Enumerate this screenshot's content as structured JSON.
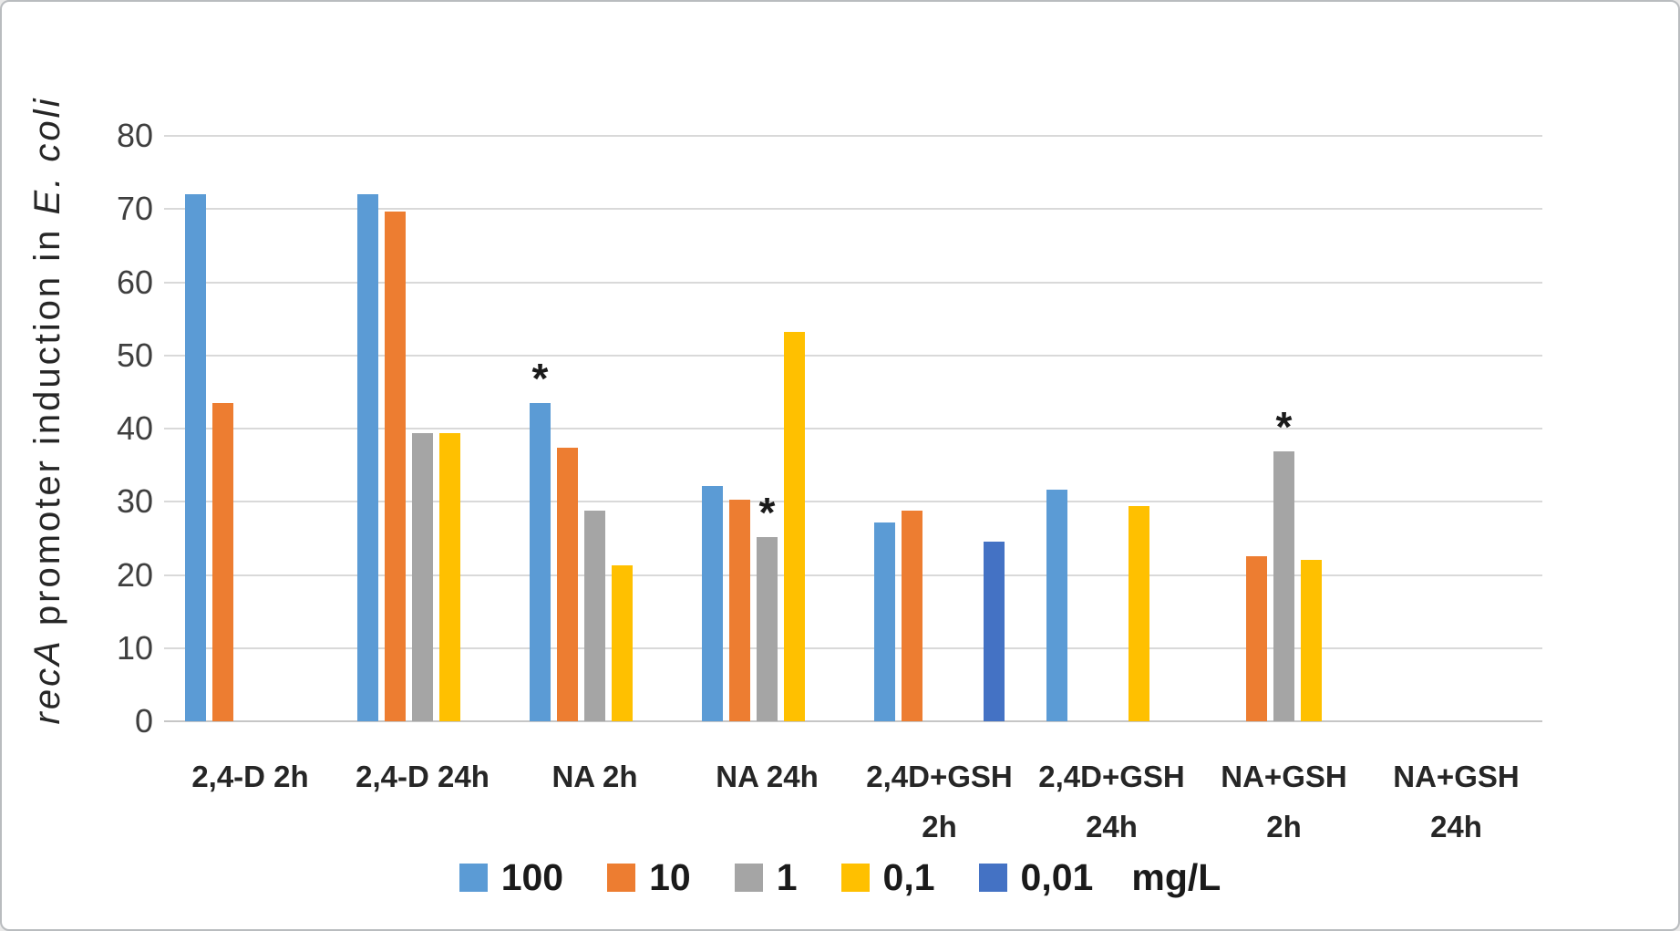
{
  "chart_data": {
    "type": "bar",
    "title": "",
    "ylabel_parts": [
      {
        "text": "recA",
        "italic": true
      },
      {
        "text": " promoter induction in ",
        "italic": false
      },
      {
        "text": "E. coli",
        "italic": true
      }
    ],
    "ylim": [
      0,
      80
    ],
    "yticks": [
      0,
      10,
      20,
      30,
      40,
      50,
      60,
      70,
      80
    ],
    "grid": true,
    "legend_position": "bottom",
    "categories": [
      "2,4-D 2h",
      "2,4-D 24h",
      "NA 2h",
      "NA 24h",
      "2,4D+GSH 2h",
      "2,4D+GSH 24h",
      "NA+GSH 2h",
      "NA+GSH 24h"
    ],
    "category_label_lines": [
      [
        "2,4-D 2h"
      ],
      [
        "2,4-D 24h"
      ],
      [
        "NA 2h"
      ],
      [
        "NA 24h"
      ],
      [
        "2,4D+GSH",
        "2h"
      ],
      [
        "2,4D+GSH",
        "24h"
      ],
      [
        "NA+GSH",
        "2h"
      ],
      [
        "NA+GSH",
        "24h"
      ]
    ],
    "series": [
      {
        "name": "100",
        "color": "#5B9BD5",
        "values": [
          72,
          72,
          43.5,
          32.2,
          27.2,
          31.6,
          null,
          null
        ]
      },
      {
        "name": "10",
        "color": "#ED7D31",
        "values": [
          43.5,
          69.7,
          37.4,
          30.3,
          28.8,
          null,
          22.5,
          null
        ]
      },
      {
        "name": "1",
        "color": "#A5A5A5",
        "values": [
          null,
          39.4,
          28.8,
          25.2,
          null,
          null,
          36.9,
          null
        ]
      },
      {
        "name": "0,1",
        "color": "#FFC000",
        "values": [
          null,
          39.4,
          21.3,
          53.2,
          null,
          29.4,
          22.1,
          null
        ]
      },
      {
        "name": "0,01",
        "color": "#4472C4",
        "values": [
          null,
          null,
          null,
          null,
          24.6,
          null,
          null,
          null
        ]
      }
    ],
    "annotations": [
      {
        "category_index": 2,
        "series_index": 0,
        "text": "*"
      },
      {
        "category_index": 3,
        "series_index": 2,
        "text": "*"
      },
      {
        "category_index": 6,
        "series_index": 2,
        "text": "*"
      }
    ],
    "legend_suffix": "mg/L"
  }
}
